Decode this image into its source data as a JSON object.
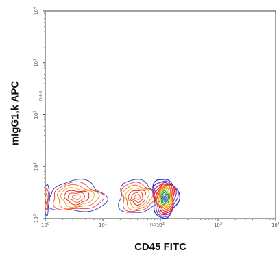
{
  "chart_data": {
    "type": "contour",
    "xlabel": "CD45 FITC",
    "ylabel": "mIgG1,k APC",
    "x_scale": "log",
    "y_scale": "log",
    "xlim": [
      1,
      10000
    ],
    "ylim": [
      1,
      10000
    ],
    "x_ticks": [
      {
        "value": 1,
        "base": "10",
        "exp": "0"
      },
      {
        "value": 10,
        "base": "10",
        "exp": "1"
      },
      {
        "value": 100,
        "base": "10",
        "exp": "2"
      },
      {
        "value": 1000,
        "base": "10",
        "exp": "3"
      },
      {
        "value": 10000,
        "base": "10",
        "exp": "4"
      }
    ],
    "y_ticks": [
      {
        "value": 1,
        "base": "10",
        "exp": "0"
      },
      {
        "value": 10,
        "base": "10",
        "exp": "1"
      },
      {
        "value": 100,
        "base": "10",
        "exp": "2"
      },
      {
        "value": 1000,
        "base": "10",
        "exp": "3"
      },
      {
        "value": 10000,
        "base": "10",
        "exp": "4"
      }
    ],
    "x_channel_text": "FL1-H",
    "y_channel_text": "FL4-H",
    "grid": false,
    "populations": [
      {
        "center_x": 3.5,
        "center_y": 2.6,
        "sx": 0.5,
        "sy": 0.3,
        "levels": 7,
        "rmax": 1.0
      },
      {
        "center_x": 40,
        "center_y": 2.6,
        "sx": 0.34,
        "sy": 0.32,
        "levels": 7,
        "rmax": 1.0
      },
      {
        "center_x": 120,
        "center_y": 2.5,
        "sx": 0.2,
        "sy": 0.34,
        "levels": 12,
        "rmax": 1.1
      },
      {
        "center_x": 1.05,
        "center_y": 2.4,
        "sx": 0.05,
        "sy": 0.3,
        "levels": 3,
        "rmax": 1.0
      }
    ],
    "contour_colors": [
      "#1d35c9",
      "#6a47d8",
      "#c02b8a",
      "#e01010",
      "#f03a2a",
      "#ee6a1b",
      "#f0a010",
      "#d8c416",
      "#3fae3a",
      "#1d9a6a",
      "#2a7bd0",
      "#7a3a9c"
    ]
  }
}
